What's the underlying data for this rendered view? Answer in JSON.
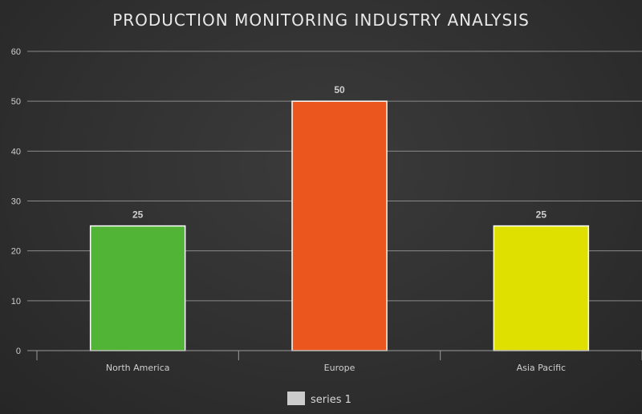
{
  "chart_data": {
    "type": "bar",
    "title": "PRODUCTION MONITORING INDUSTRY ANALYSIS",
    "categories": [
      "North America",
      "Europe",
      "Asia Pacific"
    ],
    "series": [
      {
        "name": "series 1",
        "values": [
          25,
          50,
          25
        ]
      }
    ],
    "bar_colors": [
      "#52b436",
      "#ea561d",
      "#dfe000"
    ],
    "legend_swatch_color": "#cccccc",
    "ylim": [
      0,
      60
    ],
    "yticks": [
      0,
      10,
      20,
      30,
      40,
      50,
      60
    ],
    "grid": true,
    "legend_position": "bottom",
    "xlabel": "",
    "ylabel": ""
  }
}
